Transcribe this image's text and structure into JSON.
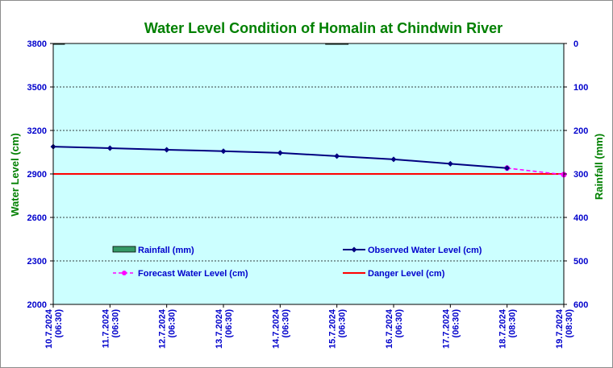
{
  "chart_data": {
    "type": "line",
    "title": "Water Level Condition of Homalin at Chindwin River",
    "ylabel_left": "Water Level (cm)",
    "ylabel_right": "Rainfall (mm)",
    "ylim_left": [
      2000,
      3800
    ],
    "yticks_left": [
      "3800",
      "3500",
      "3200",
      "2900",
      "2600",
      "2300",
      "2000"
    ],
    "ylim_right": [
      0,
      600
    ],
    "yticks_right": [
      "0",
      "100",
      "200",
      "300",
      "400",
      "500",
      "600"
    ],
    "categories": [
      [
        "10.7.2024",
        "(06:30)"
      ],
      [
        "11.7.2024",
        "(06:30)"
      ],
      [
        "12.7.2024",
        "(06:30)"
      ],
      [
        "13.7.2024",
        "(06:30)"
      ],
      [
        "14.7.2024",
        "(06:30)"
      ],
      [
        "15.7.2024",
        "(06:30)"
      ],
      [
        "16.7.2024",
        "(06:30)"
      ],
      [
        "17.7.2024",
        "(06:30)"
      ],
      [
        "18.7.2024",
        "(08:30)"
      ],
      [
        "19.7.2024",
        "(08:30)"
      ]
    ],
    "rainfall": [
      2,
      null,
      null,
      null,
      null,
      2,
      null,
      null,
      null,
      null
    ],
    "observed": [
      3088,
      3078,
      3067,
      3057,
      3045,
      3023,
      3001,
      2970,
      2940,
      null
    ],
    "forecast": [
      null,
      null,
      null,
      null,
      null,
      null,
      null,
      null,
      2940,
      2895
    ],
    "danger_level": 2900,
    "grid": true,
    "colors": {
      "plot_bg": "#ccffff",
      "rainfall": "#339966",
      "observed": "#000080",
      "forecast": "#ff00ff",
      "danger": "#ff0000",
      "title": "#008000",
      "tick": "#0000cc"
    },
    "legend": {
      "rainfall": "Rainfall (mm)",
      "observed": "Observed Water Level (cm)",
      "forecast": "Forecast Water Level (cm)",
      "danger": "Danger Level (cm)"
    }
  }
}
